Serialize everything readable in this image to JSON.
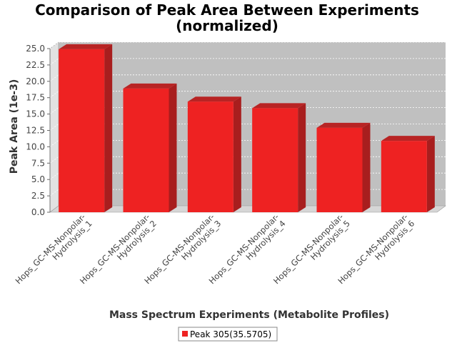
{
  "chart_data": {
    "type": "bar",
    "title_lines": [
      "Comparison of Peak Area Between Experiments",
      "(normalized)"
    ],
    "xlabel": "Mass Spectrum Experiments (Metabolite Profiles)",
    "ylabel": "Peak Area (1e-3)",
    "categories": [
      [
        "Hops_GC-MS-Nonpolar-",
        "Hydrolysis_1"
      ],
      [
        "Hops_GC-MS-Nonpolar-",
        "Hydrolysis_2"
      ],
      [
        "Hops_GC-MS-Nonpolar-",
        "Hydrolysis_3"
      ],
      [
        "Hops_GC-MS-Nonpolar-",
        "Hydrolysis_4"
      ],
      [
        "Hops_GC-MS-Nonpolar-",
        "Hydrolysis_5"
      ],
      [
        "Hops_GC-MS-Nonpolar-",
        "Hydrolysis_6"
      ]
    ],
    "series": [
      {
        "name": "Peak 305(35.5705)",
        "values": [
          24.9,
          18.9,
          16.9,
          15.9,
          12.9,
          10.9
        ]
      }
    ],
    "ylim": [
      0,
      25.0
    ],
    "yticks": [
      0.0,
      2.5,
      5.0,
      7.5,
      10.0,
      12.5,
      15.0,
      17.5,
      20.0,
      22.5,
      25.0
    ],
    "grid": true,
    "legend_position": "bottom",
    "colors": {
      "bar": "#ee2222",
      "bar_top": "#b82424",
      "bar_side": "#a81e1e",
      "plot_back": "#c0c0c0",
      "plot_floor": "#d6d6d6",
      "plot_wall": "#e2e2e2"
    }
  }
}
